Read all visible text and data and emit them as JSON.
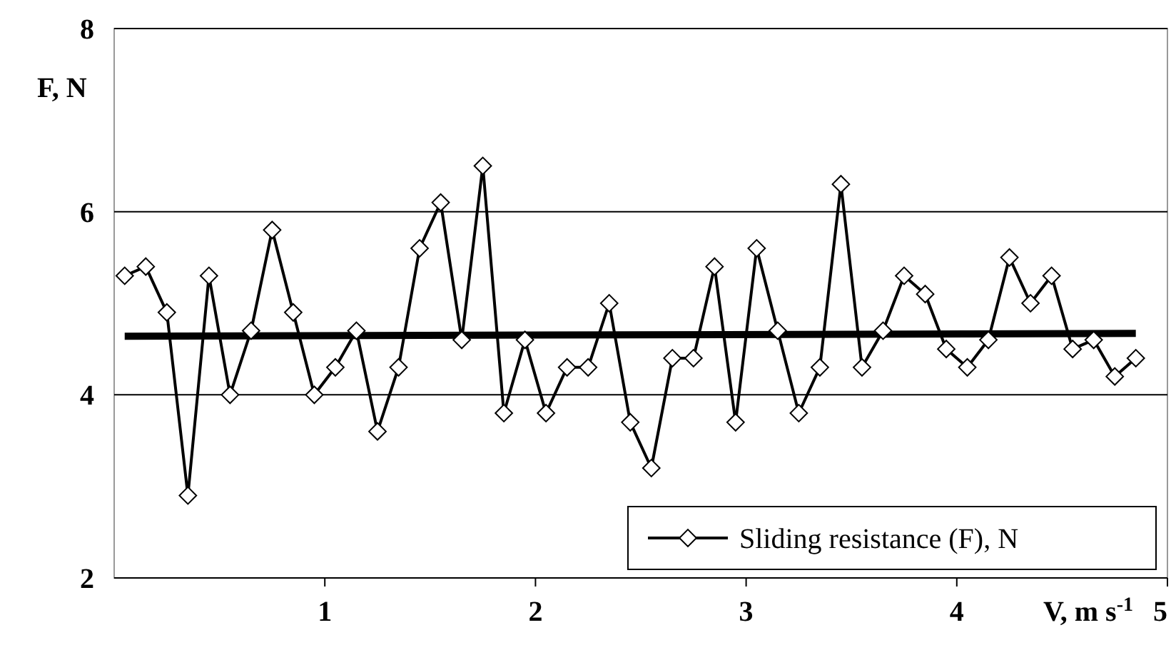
{
  "chart_data": {
    "type": "line",
    "xlabel": "V, m s$^{-1}$",
    "ylabel": "F, N",
    "xlim": [
      0,
      5
    ],
    "xticks": [
      1,
      2,
      3,
      4,
      5
    ],
    "ylim": [
      2,
      8
    ],
    "yticks": [
      2,
      4,
      6,
      8
    ],
    "grid": "y",
    "legend": "bottom right",
    "line_style": "solid",
    "series": [
      {
        "name": "Sliding resistance (F), N",
        "color": "#000000",
        "marker": "diamond",
        "x": [
          0.05,
          0.15,
          0.25,
          0.35,
          0.45,
          0.55,
          0.65,
          0.75,
          0.85,
          0.95,
          1.05,
          1.15,
          1.25,
          1.35,
          1.45,
          1.55,
          1.65,
          1.75,
          1.85,
          1.95,
          2.05,
          2.15,
          2.25,
          2.35,
          2.45,
          2.55,
          2.65,
          2.75,
          2.85,
          2.95,
          3.05,
          3.15,
          3.25,
          3.35,
          3.45,
          3.55,
          3.65,
          3.75,
          3.85,
          3.95,
          4.05,
          4.15,
          4.25,
          4.35,
          4.45,
          4.55,
          4.65,
          4.75,
          4.85
        ],
        "values": [
          5.3,
          5.4,
          4.9,
          2.9,
          5.3,
          4.0,
          4.7,
          5.8,
          4.9,
          4.0,
          4.3,
          4.7,
          3.6,
          4.3,
          5.6,
          6.1,
          4.6,
          6.5,
          3.8,
          4.6,
          3.8,
          4.3,
          4.3,
          5.0,
          3.7,
          3.2,
          4.4,
          4.4,
          5.4,
          3.7,
          5.6,
          4.7,
          3.8,
          4.3,
          6.3,
          4.3,
          4.7,
          5.3,
          5.1,
          4.5,
          4.3,
          4.6,
          5.5,
          5.0,
          5.3,
          4.5,
          4.6,
          4.2,
          4.4
        ]
      },
      {
        "color": "#000000",
        "marker": "none",
        "x": [
          0.05,
          4.85
        ],
        "values": [
          4.64,
          4.67
        ]
      }
    ]
  }
}
